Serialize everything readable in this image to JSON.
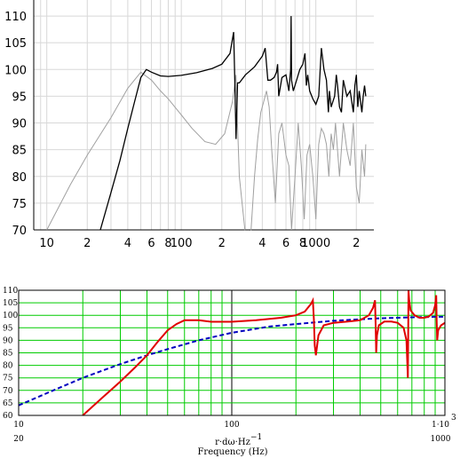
{
  "chart_data": [
    {
      "type": "line",
      "log_x": true,
      "xlim": [
        8,
        2700
      ],
      "ylim": [
        70,
        113
      ],
      "grid": true,
      "x_tick_labels": [
        "10",
        "2",
        "4",
        "6",
        "8",
        "100",
        "2",
        "4",
        "6",
        "8",
        "1000",
        "2"
      ],
      "x_tick_values": [
        10,
        20,
        40,
        60,
        80,
        100,
        200,
        400,
        600,
        800,
        1000,
        2000
      ],
      "y_tick_values": [
        70,
        75,
        80,
        85,
        90,
        95,
        100,
        105,
        110
      ],
      "y_tick_labels": [
        "70",
        "75",
        "80",
        "85",
        "90",
        "95",
        "100",
        "105",
        "110"
      ],
      "colors": {
        "series_black": "#000000",
        "series_gray": "#a0a0a0",
        "grid": "#d8d8d8"
      },
      "series": [
        {
          "color": "#000000",
          "x": [
            25,
            30,
            35,
            40,
            45,
            50,
            55,
            60,
            70,
            80,
            100,
            130,
            170,
            200,
            230,
            245,
            250,
            255,
            262,
            270,
            300,
            350,
            400,
            420,
            440,
            460,
            490,
            510,
            520,
            530,
            560,
            600,
            630,
            650,
            655,
            660,
            680,
            720,
            760,
            800,
            830,
            850,
            870,
            900,
            950,
            1000,
            1050,
            1100,
            1150,
            1200,
            1240,
            1260,
            1300,
            1380,
            1420,
            1450,
            1500,
            1550,
            1600,
            1700,
            1800,
            1900,
            1950,
            2000,
            2050,
            2100,
            2150,
            2200,
            2250,
            2300,
            2350
          ],
          "y": [
            70,
            77,
            83,
            89,
            94,
            98.5,
            100,
            99.5,
            98.8,
            98.7,
            98.9,
            99.4,
            100.2,
            101,
            103,
            107,
            98,
            87,
            97.5,
            97.5,
            99,
            100.5,
            102.5,
            104,
            98,
            98,
            98.5,
            99.5,
            101,
            95,
            98.5,
            99,
            96,
            100,
            110,
            98,
            96,
            98,
            100,
            101,
            103,
            97,
            99,
            96,
            94.5,
            93.5,
            95,
            104,
            100,
            98,
            92,
            96,
            93,
            95,
            99,
            97,
            93,
            92,
            98,
            95,
            96,
            92,
            97,
            99,
            93,
            96,
            94,
            92,
            95,
            97,
            95
          ]
        },
        {
          "color": "#a0a0a0",
          "x": [
            10,
            15,
            20,
            30,
            40,
            50,
            60,
            70,
            80,
            100,
            120,
            150,
            180,
            210,
            240,
            255,
            260,
            270,
            300,
            330,
            350,
            370,
            390,
            410,
            430,
            450,
            470,
            500,
            530,
            560,
            600,
            630,
            660,
            700,
            740,
            780,
            820,
            860,
            900,
            950,
            1000,
            1050,
            1100,
            1150,
            1200,
            1250,
            1300,
            1350,
            1400,
            1500,
            1600,
            1700,
            1800,
            1900,
            2000,
            2100,
            2200,
            2300,
            2350
          ],
          "y": [
            70,
            78.5,
            84,
            91,
            96.5,
            99.5,
            98,
            96,
            94.5,
            91.5,
            89,
            86.5,
            86,
            88,
            94,
            99,
            92,
            80,
            68,
            70,
            80,
            87,
            92,
            94,
            96,
            93,
            85,
            75,
            88,
            90,
            84,
            82,
            70,
            80,
            90,
            82,
            72,
            84,
            86,
            80,
            72,
            86,
            89,
            88,
            86,
            80,
            88,
            85,
            90,
            80,
            90,
            85,
            82,
            90,
            78,
            75,
            85,
            80,
            86
          ]
        }
      ]
    },
    {
      "type": "line",
      "log_x": true,
      "xlim": [
        10,
        1000
      ],
      "ylim": [
        60,
        110
      ],
      "grid": true,
      "xlabel": "Frequency (Hz)",
      "xlabel_extra": "r·dω·Hz",
      "xlabel_extra_exp": "−1",
      "x_tick_labels_top": [
        "10",
        "100",
        "1·10"
      ],
      "x_tick_label_top_exp": "3",
      "x_tick_labels_bottom": [
        "20",
        "1000"
      ],
      "y_tick_values": [
        60,
        65,
        70,
        75,
        80,
        85,
        90,
        95,
        100,
        105,
        110
      ],
      "y_tick_labels": [
        "60",
        "65",
        "70",
        "75",
        "80",
        "85",
        "90",
        "95",
        "100",
        "105",
        "110"
      ],
      "colors": {
        "grid": "#00cc00",
        "series_red": "#e00000",
        "series_blue": "#0000c0",
        "major_line": "#000000"
      },
      "series": [
        {
          "color": "#e00000",
          "x": [
            20,
            25,
            30,
            35,
            40,
            45,
            50,
            55,
            60,
            70,
            80,
            100,
            130,
            170,
            200,
            220,
            235,
            240,
            243,
            245,
            248,
            255,
            270,
            300,
            350,
            400,
            440,
            460,
            470,
            473,
            476,
            480,
            490,
            520,
            560,
            600,
            640,
            660,
            670,
            675,
            680,
            690,
            720,
            760,
            800,
            840,
            880,
            900,
            910,
            915,
            920,
            930,
            960,
            1000
          ],
          "y": [
            60,
            67.5,
            73.5,
            79,
            84,
            89.5,
            94,
            96.5,
            98,
            98,
            97.4,
            97.4,
            98,
            99,
            100,
            101.5,
            104.5,
            106,
            98,
            88,
            84,
            92,
            96,
            97,
            97.5,
            98,
            100,
            103,
            106,
            96,
            85,
            92,
            96,
            97.5,
            97.5,
            97,
            95,
            90,
            75,
            110,
            106,
            102,
            100,
            99,
            99,
            99.5,
            101,
            104,
            108,
            98,
            90,
            94,
            96,
            97
          ]
        },
        {
          "color": "#0000c0",
          "dashed": true,
          "x": [
            10,
            15,
            20,
            30,
            40,
            50,
            70,
            100,
            150,
            200,
            300,
            400,
            500,
            600,
            700,
            800,
            900,
            1000
          ],
          "y": [
            64,
            70.5,
            75,
            80.5,
            84,
            86.5,
            90,
            93,
            95.5,
            96.5,
            97.8,
            98.4,
            98.8,
            99,
            99.2,
            99.3,
            99.4,
            99.4
          ]
        }
      ]
    }
  ]
}
